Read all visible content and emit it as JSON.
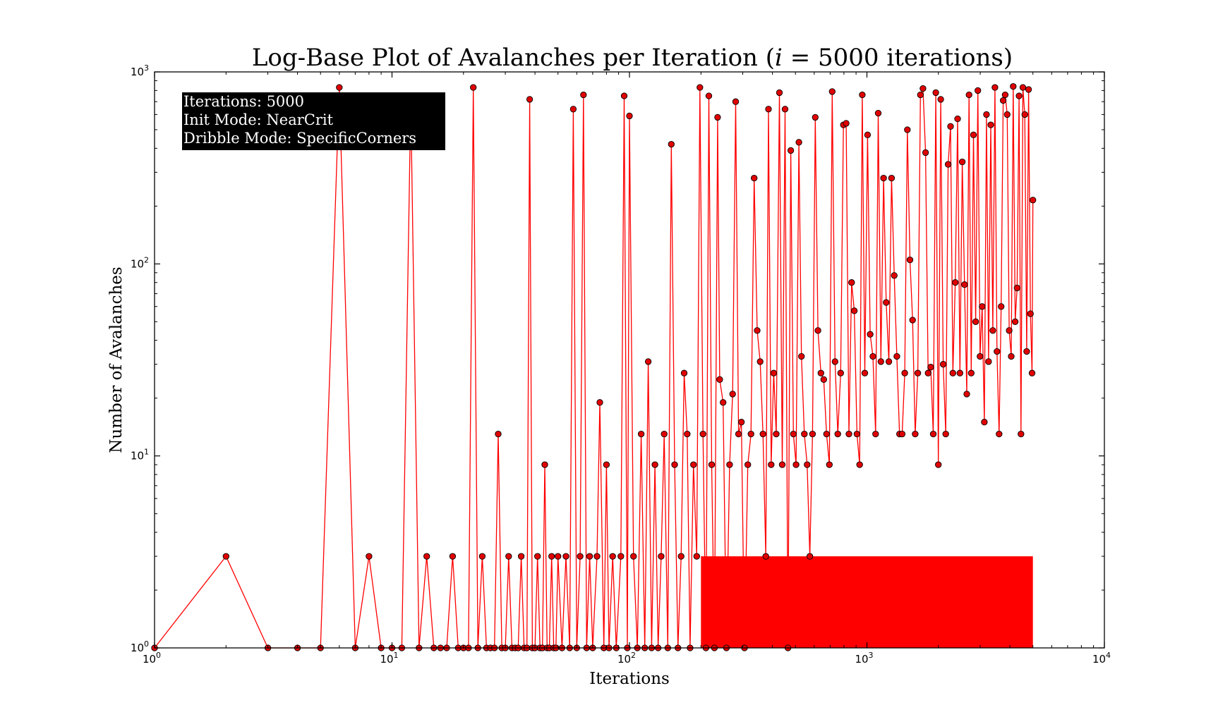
{
  "chart_data": {
    "type": "line",
    "title_main": "Log-Base Plot of Avalanches per Iteration (",
    "title_var": "i",
    "title_eq": " = 5000",
    "title_tail": " iterations)",
    "xlabel": "Iterations",
    "ylabel": "Number of Avalanches",
    "xscale": "log",
    "yscale": "log",
    "xlim": [
      1,
      10000
    ],
    "ylim": [
      1,
      1000
    ],
    "x_ticks": [
      {
        "base": "10",
        "exp": "0",
        "value": 1
      },
      {
        "base": "10",
        "exp": "1",
        "value": 10
      },
      {
        "base": "10",
        "exp": "2",
        "value": 100
      },
      {
        "base": "10",
        "exp": "3",
        "value": 1000
      },
      {
        "base": "10",
        "exp": "4",
        "value": 10000
      }
    ],
    "y_ticks": [
      {
        "base": "10",
        "exp": "0",
        "value": 1
      },
      {
        "base": "10",
        "exp": "1",
        "value": 10
      },
      {
        "base": "10",
        "exp": "2",
        "value": 100
      },
      {
        "base": "10",
        "exp": "3",
        "value": 1000
      }
    ],
    "grid": false,
    "line_color": "#ff0000",
    "marker_face": "#e00000",
    "marker_edge": "#000000",
    "annotation_lines": [
      "Iterations: 5000",
      "Init Mode: NearCrit",
      "Dribble Mode: SpecificCorners"
    ],
    "annotation_position": "top-left",
    "annotation_bg": "#000000",
    "annotation_fg": "#ffffff",
    "series_name": "",
    "points": [
      [
        1,
        1
      ],
      [
        2,
        3
      ],
      [
        3,
        1
      ],
      [
        4,
        1
      ],
      [
        5,
        1
      ],
      [
        6,
        830
      ],
      [
        7,
        1
      ],
      [
        8,
        3
      ],
      [
        9,
        1
      ],
      [
        10,
        1
      ],
      [
        11,
        1
      ],
      [
        12,
        720
      ],
      [
        13,
        1
      ],
      [
        14,
        3
      ],
      [
        15,
        1
      ],
      [
        16,
        1
      ],
      [
        17,
        1
      ],
      [
        18,
        3
      ],
      [
        19,
        1
      ],
      [
        20,
        1
      ],
      [
        21,
        1
      ],
      [
        22,
        830
      ],
      [
        23,
        1
      ],
      [
        24,
        3
      ],
      [
        25,
        1
      ],
      [
        26,
        1
      ],
      [
        27,
        1
      ],
      [
        28,
        13
      ],
      [
        29,
        1
      ],
      [
        30,
        1
      ],
      [
        31,
        3
      ],
      [
        32,
        1
      ],
      [
        33,
        1
      ],
      [
        34,
        1
      ],
      [
        35,
        3
      ],
      [
        36,
        1
      ],
      [
        37,
        1
      ],
      [
        38,
        720
      ],
      [
        39,
        1
      ],
      [
        40,
        1
      ],
      [
        41,
        3
      ],
      [
        42,
        1
      ],
      [
        43,
        1
      ],
      [
        44,
        9
      ],
      [
        45,
        1
      ],
      [
        46,
        1
      ],
      [
        47,
        3
      ],
      [
        48,
        1
      ],
      [
        49,
        1
      ],
      [
        50,
        3
      ],
      [
        52,
        1
      ],
      [
        54,
        3
      ],
      [
        56,
        1
      ],
      [
        58,
        640
      ],
      [
        60,
        1
      ],
      [
        62,
        3
      ],
      [
        64,
        760
      ],
      [
        66,
        1
      ],
      [
        68,
        3
      ],
      [
        70,
        1
      ],
      [
        73,
        3
      ],
      [
        75,
        19
      ],
      [
        78,
        1
      ],
      [
        80,
        9
      ],
      [
        82,
        1
      ],
      [
        85,
        3
      ],
      [
        88,
        1
      ],
      [
        92,
        3
      ],
      [
        95,
        750
      ],
      [
        98,
        1
      ],
      [
        100,
        590
      ],
      [
        104,
        3
      ],
      [
        108,
        1
      ],
      [
        112,
        13
      ],
      [
        116,
        1
      ],
      [
        120,
        31
      ],
      [
        124,
        1
      ],
      [
        128,
        9
      ],
      [
        132,
        1
      ],
      [
        136,
        3
      ],
      [
        140,
        13
      ],
      [
        145,
        1
      ],
      [
        150,
        420
      ],
      [
        155,
        9
      ],
      [
        160,
        1
      ],
      [
        165,
        3
      ],
      [
        170,
        27
      ],
      [
        175,
        13
      ],
      [
        180,
        1
      ],
      [
        186,
        9
      ],
      [
        192,
        3
      ],
      [
        198,
        830
      ],
      [
        204,
        13
      ],
      [
        210,
        1
      ],
      [
        216,
        750
      ],
      [
        222,
        9
      ],
      [
        228,
        1
      ],
      [
        235,
        580
      ],
      [
        240,
        25
      ],
      [
        248,
        19
      ],
      [
        256,
        1
      ],
      [
        264,
        9
      ],
      [
        272,
        21
      ],
      [
        280,
        700
      ],
      [
        288,
        13
      ],
      [
        296,
        15
      ],
      [
        305,
        1
      ],
      [
        315,
        9
      ],
      [
        325,
        13
      ],
      [
        335,
        280
      ],
      [
        345,
        45
      ],
      [
        355,
        31
      ],
      [
        365,
        13
      ],
      [
        375,
        3
      ],
      [
        385,
        640
      ],
      [
        395,
        9
      ],
      [
        405,
        27
      ],
      [
        415,
        13
      ],
      [
        428,
        780
      ],
      [
        440,
        9
      ],
      [
        452,
        640
      ],
      [
        465,
        1
      ],
      [
        478,
        390
      ],
      [
        490,
        13
      ],
      [
        503,
        9
      ],
      [
        517,
        430
      ],
      [
        530,
        33
      ],
      [
        545,
        13
      ],
      [
        560,
        9
      ],
      [
        575,
        3
      ],
      [
        590,
        13
      ],
      [
        606,
        580
      ],
      [
        622,
        45
      ],
      [
        640,
        27
      ],
      [
        658,
        25
      ],
      [
        676,
        13
      ],
      [
        695,
        9
      ],
      [
        714,
        790
      ],
      [
        734,
        31
      ],
      [
        754,
        13
      ],
      [
        775,
        27
      ],
      [
        796,
        530
      ],
      [
        818,
        540
      ],
      [
        840,
        13
      ],
      [
        862,
        80
      ],
      [
        885,
        57
      ],
      [
        908,
        13
      ],
      [
        932,
        9
      ],
      [
        956,
        760
      ],
      [
        980,
        27
      ],
      [
        1006,
        470
      ],
      [
        1032,
        43
      ],
      [
        1060,
        33
      ],
      [
        1088,
        13
      ],
      [
        1116,
        610
      ],
      [
        1145,
        31
      ],
      [
        1175,
        280
      ],
      [
        1205,
        63
      ],
      [
        1237,
        31
      ],
      [
        1270,
        280
      ],
      [
        1303,
        87
      ],
      [
        1337,
        33
      ],
      [
        1372,
        13
      ],
      [
        1407,
        13
      ],
      [
        1443,
        27
      ],
      [
        1480,
        500
      ],
      [
        1518,
        105
      ],
      [
        1557,
        51
      ],
      [
        1597,
        13
      ],
      [
        1638,
        27
      ],
      [
        1680,
        760
      ],
      [
        1722,
        820
      ],
      [
        1766,
        380
      ],
      [
        1810,
        27
      ],
      [
        1856,
        29
      ],
      [
        1902,
        13
      ],
      [
        1950,
        780
      ],
      [
        1998,
        9
      ],
      [
        2046,
        720
      ],
      [
        2096,
        30
      ],
      [
        2147,
        13
      ],
      [
        2198,
        330
      ],
      [
        2250,
        520
      ],
      [
        2302,
        27
      ],
      [
        2356,
        80
      ],
      [
        2410,
        570
      ],
      [
        2465,
        27
      ],
      [
        2520,
        340
      ],
      [
        2577,
        78
      ],
      [
        2634,
        21
      ],
      [
        2692,
        760
      ],
      [
        2750,
        27
      ],
      [
        2810,
        470
      ],
      [
        2870,
        50
      ],
      [
        2932,
        800
      ],
      [
        2994,
        33
      ],
      [
        3058,
        60
      ],
      [
        3122,
        15
      ],
      [
        3188,
        600
      ],
      [
        3254,
        31
      ],
      [
        3322,
        530
      ],
      [
        3390,
        45
      ],
      [
        3460,
        830
      ],
      [
        3530,
        35
      ],
      [
        3602,
        13
      ],
      [
        3674,
        60
      ],
      [
        3748,
        710
      ],
      [
        3822,
        760
      ],
      [
        3898,
        600
      ],
      [
        3974,
        45
      ],
      [
        4052,
        33
      ],
      [
        4130,
        840
      ],
      [
        4210,
        50
      ],
      [
        4290,
        75
      ],
      [
        4372,
        750
      ],
      [
        4454,
        13
      ],
      [
        4538,
        830
      ],
      [
        4622,
        600
      ],
      [
        4708,
        35
      ],
      [
        4794,
        810
      ],
      [
        4880,
        55
      ],
      [
        4960,
        27
      ],
      [
        5000,
        215
      ]
    ]
  }
}
